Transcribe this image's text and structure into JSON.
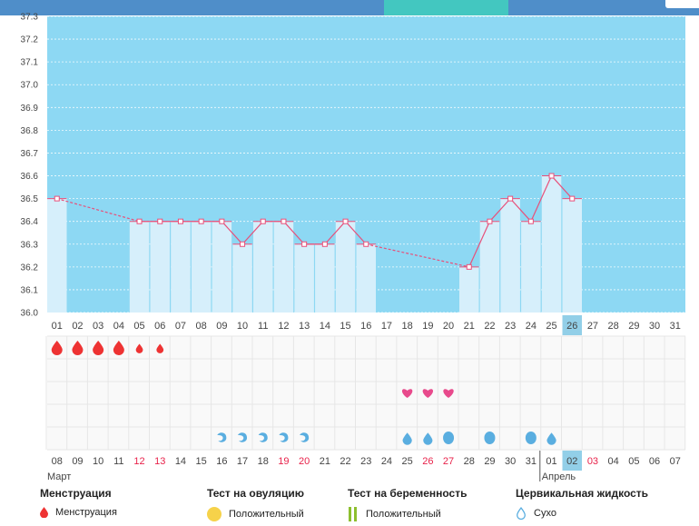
{
  "app": {
    "colors": {
      "header_bar": "#4f8ec9",
      "active_tab": "#43c7c0",
      "chart_bg": "#8dd8f3",
      "bar_fill": "#d6effb",
      "line": "#e8507a",
      "weekend": "#e8224a",
      "menstruation": "#ee3333",
      "ovulation": "#e84a8c",
      "fluid": "#5aaee0",
      "today_highlight": "#92cfe8"
    }
  },
  "chart_data": {
    "type": "line",
    "ylim": [
      36.0,
      37.3
    ],
    "yticks": [
      "36.0",
      "36.1",
      "36.2",
      "36.3",
      "36.4",
      "36.5",
      "36.6",
      "36.7",
      "36.8",
      "36.9",
      "37.0",
      "37.1",
      "37.2",
      "37.3"
    ],
    "grid": true,
    "cycle_days": [
      "01",
      "02",
      "03",
      "04",
      "05",
      "06",
      "07",
      "08",
      "09",
      "10",
      "11",
      "12",
      "13",
      "14",
      "15",
      "16",
      "17",
      "18",
      "19",
      "20",
      "21",
      "22",
      "23",
      "24",
      "25",
      "26",
      "27",
      "28",
      "29",
      "30",
      "31"
    ],
    "current_cycle_day": "26",
    "series": [
      {
        "values": [
          36.5,
          null,
          null,
          null,
          36.4,
          36.4,
          36.4,
          36.4,
          36.4,
          36.3,
          36.4,
          36.4,
          36.3,
          36.3,
          36.4,
          36.3,
          null,
          null,
          null,
          null,
          36.2,
          36.4,
          36.5,
          36.4,
          36.6,
          36.5,
          null,
          null,
          null,
          null,
          null
        ]
      }
    ],
    "menstruation": {
      "icon": "drop-icon",
      "days": [
        "01",
        "02",
        "03",
        "04",
        "05",
        "06"
      ],
      "sizes": [
        "large",
        "large",
        "large",
        "large",
        "small",
        "small"
      ]
    },
    "ovulation_test_positive": {
      "icon": "heart-icon",
      "days": [
        "18",
        "19",
        "20"
      ]
    },
    "cervical_fluid": {
      "icon": "drop-icon",
      "days": [
        "09",
        "10",
        "11",
        "12",
        "13",
        "18",
        "19",
        "20",
        "22",
        "24",
        "25"
      ],
      "kinds": [
        "swirl",
        "swirl",
        "swirl",
        "swirl",
        "swirl",
        "drop",
        "drop",
        "round",
        "round",
        "round",
        "drop"
      ]
    },
    "dates": [
      "08",
      "09",
      "10",
      "11",
      "12",
      "13",
      "14",
      "15",
      "16",
      "17",
      "18",
      "19",
      "20",
      "21",
      "22",
      "23",
      "24",
      "25",
      "26",
      "27",
      "28",
      "29",
      "30",
      "31",
      "01",
      "02",
      "03",
      "04",
      "05",
      "06",
      "07"
    ],
    "weekend_dates": [
      4,
      5,
      11,
      12,
      18,
      19,
      26
    ],
    "current_date_index": 25,
    "months": [
      {
        "label": "Март",
        "index": 0
      },
      {
        "label": "Апрель",
        "index": 24
      }
    ]
  },
  "legend": {
    "menstruation": {
      "title": "Менструация",
      "item": "Менструация"
    },
    "ovulation_test": {
      "title": "Тест на овуляцию",
      "item": "Положительный"
    },
    "pregnancy_test": {
      "title": "Тест на беременность",
      "item": "Положительный"
    },
    "cervical_fluid": {
      "title": "Цервикальная жидкость",
      "item": "Сухо"
    }
  }
}
